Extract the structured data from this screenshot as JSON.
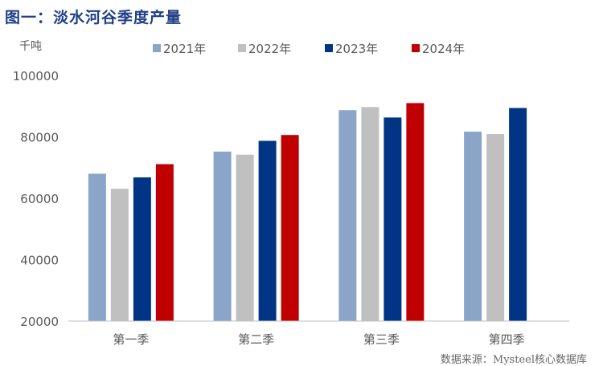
{
  "title": "图一：淡水河谷季度产量",
  "source": "数据来源：Mysteel核心数据库",
  "colors": {
    "title": "#1f3f86",
    "axis_text": "#595959",
    "axis_line": "#bfbfbf"
  },
  "chart_data": {
    "type": "bar",
    "title": "图一：淡水河谷季度产量",
    "ylabel": "千吨",
    "xlabel": "",
    "categories": [
      "第一季",
      "第二季",
      "第三季",
      "第四季"
    ],
    "ylim": [
      20000,
      100000
    ],
    "yticks": [
      20000,
      40000,
      60000,
      80000,
      100000
    ],
    "grid": false,
    "legend_position": "top",
    "series": [
      {
        "name": "2021年",
        "color": "#8aa5c8",
        "values": [
          68000,
          75200,
          88700,
          81700
        ]
      },
      {
        "name": "2022年",
        "color": "#c0c0c0",
        "values": [
          63100,
          74200,
          89700,
          80900
        ]
      },
      {
        "name": "2023年",
        "color": "#003585",
        "values": [
          66800,
          78700,
          86300,
          89400
        ]
      },
      {
        "name": "2024年",
        "color": "#c00000",
        "values": [
          71100,
          80600,
          91000,
          null
        ]
      }
    ]
  }
}
